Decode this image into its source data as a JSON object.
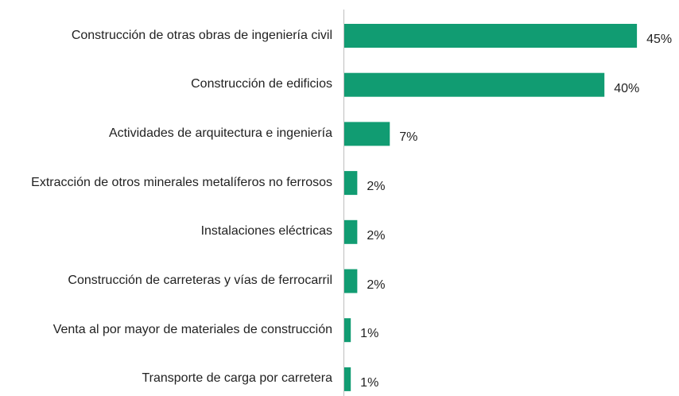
{
  "chart_data": {
    "type": "bar",
    "orientation": "horizontal",
    "categories": [
      "Construcción de otras obras de ingeniería civil",
      "Construcción de edificios",
      "Actividades de arquitectura e ingeniería",
      "Extracción de otros minerales metalíferos no ferrosos",
      "Instalaciones eléctricas",
      "Construcción de carreteras y vías de ferrocarril",
      "Venta al por mayor de materiales de construcción",
      "Transporte de carga por carretera"
    ],
    "values": [
      45,
      40,
      7,
      2,
      2,
      2,
      1,
      1
    ],
    "value_labels": [
      "45%",
      "40%",
      "7%",
      "2%",
      "2%",
      "2%",
      "1%",
      "1%"
    ],
    "color": "#119c72"
  }
}
